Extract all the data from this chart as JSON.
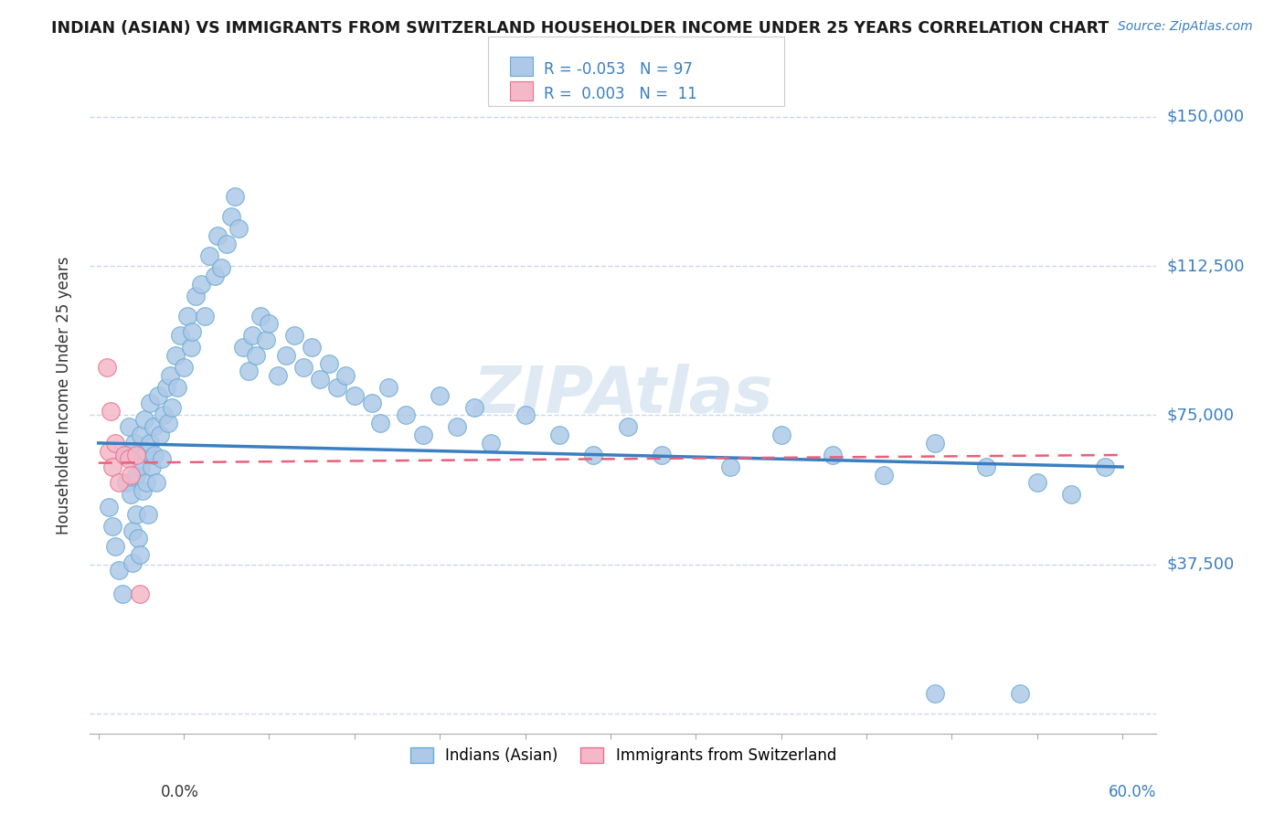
{
  "title": "INDIAN (ASIAN) VS IMMIGRANTS FROM SWITZERLAND HOUSEHOLDER INCOME UNDER 25 YEARS CORRELATION CHART",
  "source_text": "Source: ZipAtlas.com",
  "ylabel": "Householder Income Under 25 years",
  "ytick_values": [
    0,
    37500,
    75000,
    112500,
    150000
  ],
  "ytick_labels": [
    "",
    "$37,500",
    "$75,000",
    "$112,500",
    "$150,000"
  ],
  "ylim": [
    -5000,
    165000
  ],
  "xlim": [
    -0.005,
    0.62
  ],
  "watermark": "ZIPAtlas",
  "color_blue_fill": "#aec9e8",
  "color_blue_edge": "#6aaad4",
  "color_pink_fill": "#f4b8c8",
  "color_pink_edge": "#e87090",
  "color_blue_line": "#3a7fc1",
  "color_pink_line": "#e8607a",
  "color_legend_text_blue": "#3a7fc1",
  "color_legend_text_black": "#333333",
  "color_ytick": "#3a7fc1",
  "color_grid": "#c8d8ec",
  "background_color": "#ffffff",
  "indian_x": [
    0.006,
    0.008,
    0.01,
    0.012,
    0.014,
    0.016,
    0.016,
    0.018,
    0.019,
    0.02,
    0.02,
    0.021,
    0.022,
    0.022,
    0.023,
    0.024,
    0.025,
    0.025,
    0.026,
    0.027,
    0.028,
    0.028,
    0.029,
    0.03,
    0.03,
    0.031,
    0.032,
    0.033,
    0.034,
    0.035,
    0.036,
    0.037,
    0.038,
    0.04,
    0.041,
    0.042,
    0.043,
    0.045,
    0.046,
    0.048,
    0.05,
    0.052,
    0.054,
    0.055,
    0.057,
    0.06,
    0.062,
    0.065,
    0.068,
    0.07,
    0.072,
    0.075,
    0.078,
    0.08,
    0.082,
    0.085,
    0.088,
    0.09,
    0.092,
    0.095,
    0.098,
    0.1,
    0.105,
    0.11,
    0.115,
    0.12,
    0.125,
    0.13,
    0.135,
    0.14,
    0.145,
    0.15,
    0.16,
    0.165,
    0.17,
    0.18,
    0.19,
    0.2,
    0.21,
    0.22,
    0.23,
    0.25,
    0.27,
    0.29,
    0.31,
    0.33,
    0.37,
    0.4,
    0.43,
    0.46,
    0.49,
    0.52,
    0.55,
    0.57,
    0.59,
    0.49,
    0.54
  ],
  "indian_y": [
    52000,
    47000,
    42000,
    36000,
    30000,
    65000,
    58000,
    72000,
    55000,
    46000,
    38000,
    68000,
    60000,
    50000,
    44000,
    40000,
    70000,
    62000,
    56000,
    74000,
    66000,
    58000,
    50000,
    78000,
    68000,
    62000,
    72000,
    65000,
    58000,
    80000,
    70000,
    64000,
    75000,
    82000,
    73000,
    85000,
    77000,
    90000,
    82000,
    95000,
    87000,
    100000,
    92000,
    96000,
    105000,
    108000,
    100000,
    115000,
    110000,
    120000,
    112000,
    118000,
    125000,
    130000,
    122000,
    92000,
    86000,
    95000,
    90000,
    100000,
    94000,
    98000,
    85000,
    90000,
    95000,
    87000,
    92000,
    84000,
    88000,
    82000,
    85000,
    80000,
    78000,
    73000,
    82000,
    75000,
    70000,
    80000,
    72000,
    77000,
    68000,
    75000,
    70000,
    65000,
    72000,
    65000,
    62000,
    70000,
    65000,
    60000,
    68000,
    62000,
    58000,
    55000,
    62000,
    5000,
    5000
  ],
  "swiss_x": [
    0.005,
    0.006,
    0.007,
    0.008,
    0.01,
    0.012,
    0.015,
    0.018,
    0.019,
    0.022,
    0.024
  ],
  "swiss_y": [
    87000,
    66000,
    76000,
    62000,
    68000,
    58000,
    65000,
    64000,
    60000,
    65000,
    30000
  ],
  "blue_trend_x": [
    0.0,
    0.6
  ],
  "blue_trend_y": [
    68000,
    62000
  ],
  "pink_trend_x": [
    0.0,
    0.6
  ],
  "pink_trend_y": [
    63000,
    65000
  ]
}
